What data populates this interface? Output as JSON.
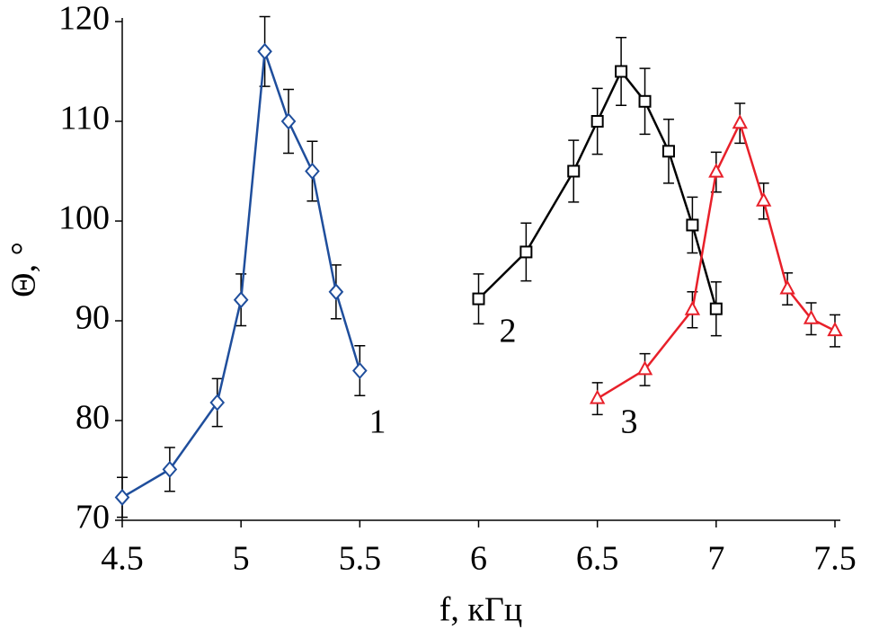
{
  "chart_data": {
    "type": "line",
    "x_label": "f, кГц",
    "y_label": "Θ, °",
    "xlim": [
      4.5,
      7.5
    ],
    "xticks": [
      4.5,
      5,
      5.5,
      6,
      6.5,
      7,
      7.5
    ],
    "ylim": [
      70,
      120
    ],
    "yticks": [
      70,
      80,
      90,
      100,
      110,
      120
    ],
    "series": [
      {
        "name": "1",
        "color": "#1f4e9c",
        "marker": "diamond",
        "x": [
          4.5,
          4.7,
          4.9,
          5.0,
          5.1,
          5.2,
          5.3,
          5.4,
          5.5
        ],
        "values": [
          72.3,
          75.1,
          81.8,
          92.1,
          117,
          110,
          105,
          92.9,
          85
        ],
        "errors": [
          2,
          2.2,
          2.4,
          2.6,
          3.5,
          3.2,
          3,
          2.7,
          2.5
        ]
      },
      {
        "name": "2",
        "color": "#000000",
        "marker": "square",
        "x": [
          6.0,
          6.2,
          6.4,
          6.5,
          6.6,
          6.7,
          6.8,
          6.9,
          7.0
        ],
        "values": [
          92.2,
          96.9,
          105,
          110,
          115,
          112,
          107,
          99.6,
          91.2
        ],
        "errors": [
          2.5,
          2.9,
          3.1,
          3.3,
          3.4,
          3.3,
          3.2,
          2.8,
          2.7
        ]
      },
      {
        "name": "3",
        "color": "#e8202a",
        "marker": "triangle",
        "x": [
          6.5,
          6.7,
          6.9,
          7.0,
          7.1,
          7.2,
          7.3,
          7.4,
          7.5
        ],
        "values": [
          82.2,
          85.1,
          91.1,
          104.9,
          109.8,
          102,
          93.2,
          90.2,
          89
        ],
        "errors": [
          1.6,
          1.6,
          1.8,
          2,
          2,
          1.8,
          1.6,
          1.6,
          1.6
        ]
      }
    ]
  }
}
